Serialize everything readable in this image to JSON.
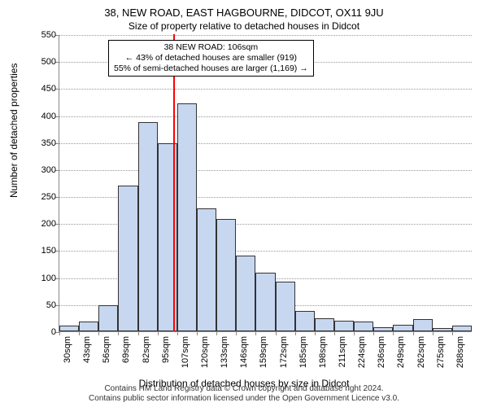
{
  "title_line1": "38, NEW ROAD, EAST HAGBOURNE, DIDCOT, OX11 9JU",
  "title_line2": "Size of property relative to detached houses in Didcot",
  "ylabel": "Number of detached properties",
  "xlabel": "Distribution of detached houses by size in Didcot",
  "footer_line1": "Contains HM Land Registry data © Crown copyright and database right 2024.",
  "footer_line2": "Contains public sector information licensed under the Open Government Licence v3.0.",
  "annotation": {
    "line1": "38 NEW ROAD: 106sqm",
    "line2": "← 43% of detached houses are smaller (919)",
    "line3": "55% of semi-detached houses are larger (1,169) →"
  },
  "chart": {
    "type": "histogram",
    "ylim": [
      0,
      550
    ],
    "ytick_step": 50,
    "background_color": "#ffffff",
    "grid_color": "#999999",
    "bar_fill": "#c7d7f0",
    "bar_border": "#333333",
    "highlight_color": "#ff0000",
    "highlight_value": 106,
    "x_start": 30,
    "x_step": 13,
    "x_unit": "sqm",
    "categories": [
      "30sqm",
      "43sqm",
      "56sqm",
      "69sqm",
      "82sqm",
      "95sqm",
      "107sqm",
      "120sqm",
      "133sqm",
      "146sqm",
      "159sqm",
      "172sqm",
      "185sqm",
      "198sqm",
      "211sqm",
      "224sqm",
      "236sqm",
      "249sqm",
      "262sqm",
      "275sqm",
      "288sqm"
    ],
    "values": [
      10,
      18,
      48,
      270,
      388,
      348,
      422,
      228,
      208,
      140,
      108,
      92,
      38,
      24,
      20,
      18,
      8,
      12,
      22,
      6,
      10
    ],
    "label_fontsize": 11,
    "title_fontsize": 13
  }
}
